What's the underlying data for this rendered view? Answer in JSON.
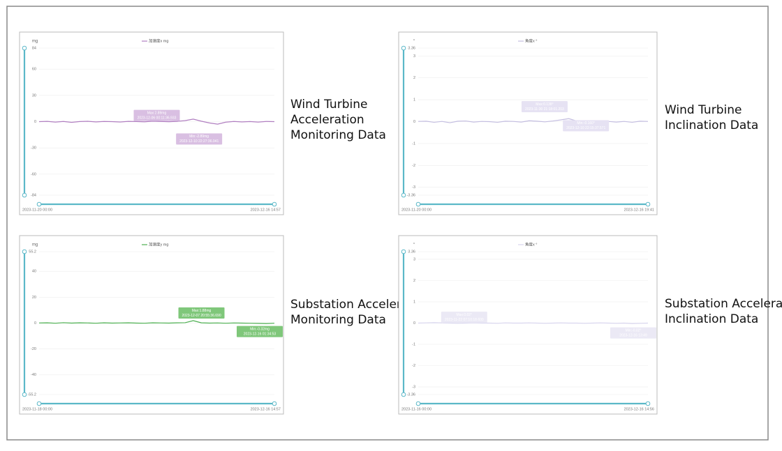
{
  "chart_data": [
    {
      "type": "line",
      "caption": "Wind Turbine Acceleration Monitoring Data",
      "y_label": "mg",
      "series": [
        {
          "name": "加速度x mg",
          "color": "#b07ec0",
          "values": [
            0,
            0.3,
            -0.5,
            0.2,
            -0.8,
            0.1,
            0.4,
            -0.3,
            0.2,
            0,
            -0.4,
            0.3,
            0.1,
            -0.2,
            0.5,
            0.2,
            -0.1,
            0.3,
            1.2,
            2.89,
            0.5,
            -1.5,
            -2.89,
            -0.6,
            0.2,
            -0.3,
            0.1,
            -0.5,
            0.2,
            0
          ]
        }
      ],
      "ylim": [
        -84,
        84
      ],
      "yticks": [
        -84,
        -60,
        -30,
        0,
        30,
        60,
        84
      ],
      "grid": true,
      "x_start": "2023-11-20 00:00",
      "x_end": "2023-12-16 14:57",
      "annotations": [
        [
          "Max:2.89mg",
          "2023-12-06 00:11:36.933"
        ],
        [
          "Min:-2.89mg",
          "2023-12-10 22:27:36.041"
        ]
      ]
    },
    {
      "type": "line",
      "caption": "Wind Turbine Inclination Data",
      "y_label": "°",
      "series": [
        {
          "name": "角度x °",
          "color": "#c3bde0",
          "values": [
            0.01,
            0.02,
            -0.03,
            0.01,
            -0.05,
            0.02,
            0.03,
            -0.02,
            0.01,
            0,
            -0.03,
            0.02,
            0.01,
            -0.02,
            0.04,
            0.02,
            -0.01,
            0.03,
            0.08,
            0.138,
            0.03,
            -0.1,
            -0.16,
            -0.04,
            0.01,
            -0.02,
            0.01,
            -0.03,
            0.02,
            0.01
          ]
        }
      ],
      "ylim": [
        -3.36,
        3.36
      ],
      "yticks": [
        -3.36,
        -3,
        -2,
        -1,
        0,
        1,
        2,
        3,
        3.36
      ],
      "grid": true,
      "x_start": "2023-11-20 00:00",
      "x_end": "2023-12-16 19:41",
      "annotations": [
        [
          "Max:0.138°",
          "2023-11-30 21:18:01.203"
        ],
        [
          "Min:-0.160°",
          "2023-12-10 22:15:37.571"
        ]
      ]
    },
    {
      "type": "line",
      "caption": "Substation Acceleration Monitoring Data",
      "y_label": "mg",
      "series": [
        {
          "name": "加速度y mg",
          "color": "#4caf50",
          "values": [
            0.1,
            0.2,
            -0.1,
            0.3,
            0,
            0.2,
            0.1,
            -0.1,
            0.2,
            0,
            0.1,
            0.2,
            0,
            -0.1,
            0.2,
            0.1,
            0,
            0.2,
            0.3,
            1.88,
            0.2,
            0,
            0.1,
            -0.1,
            0.1,
            0,
            -0.1,
            -0.2,
            -0.32,
            -0.1
          ]
        }
      ],
      "ylim": [
        -55.2,
        55.2
      ],
      "yticks": [
        -55.2,
        -40,
        -20,
        0,
        20,
        40,
        55.2
      ],
      "grid": true,
      "x_start": "2023-11-18 00:00",
      "x_end": "2023-12-16 14:57",
      "annotations": [
        [
          "Max:1.88mg",
          "2023-12-07 20:55:36.690"
        ],
        [
          "Min:-0.32mg",
          "2023-12-16 01:34:53"
        ]
      ]
    },
    {
      "type": "line",
      "caption": "Substation Acceleration Inclination Data",
      "y_label": "°",
      "series": [
        {
          "name": "角度x °",
          "color": "#d8d5ee",
          "values": [
            0,
            0.01,
            0.02,
            0.01,
            0,
            -0.01,
            0,
            0.01,
            0,
            0,
            -0.01,
            0.01,
            0,
            0,
            0.01,
            0,
            -0.01,
            0,
            0.01,
            0,
            0,
            -0.01,
            0,
            0.01,
            0,
            -0.01,
            0,
            -0.02,
            -0.01,
            0
          ]
        }
      ],
      "ylim": [
        -3.36,
        3.36
      ],
      "yticks": [
        -3.36,
        -3,
        -2,
        -1,
        0,
        1,
        2,
        3,
        3.36
      ],
      "grid": true,
      "x_start": "2023-11-16 00:00",
      "x_end": "2023-12-16 14:56",
      "annotations": [
        [
          "Max:0.02°",
          "2023-11-22 07:10:18.600"
        ],
        [
          "Min:-0.02°",
          "2023-12-16 13:49"
        ]
      ]
    }
  ]
}
